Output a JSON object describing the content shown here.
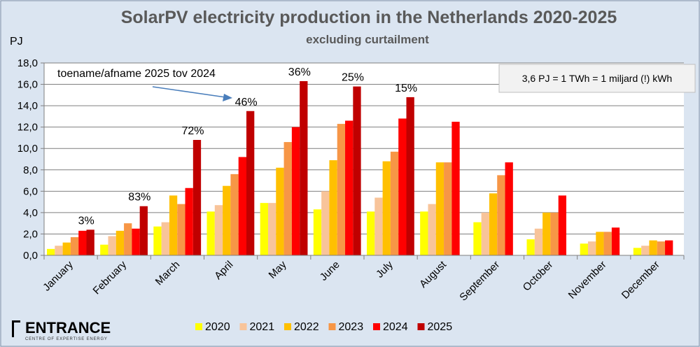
{
  "chart_data": {
    "type": "bar",
    "title": "SolarPV electricity production in the Netherlands 2020-2025",
    "subtitle": "excluding curtailment",
    "ylabel": "PJ",
    "xlabel": "",
    "ylim": [
      0,
      18
    ],
    "yticks": [
      "0,0",
      "2,0",
      "4,0",
      "6,0",
      "8,0",
      "10,0",
      "12,0",
      "14,0",
      "16,0",
      "18,0"
    ],
    "grid": true,
    "legend": "bottom",
    "categories": [
      "January",
      "February",
      "March",
      "April",
      "May",
      "June",
      "July",
      "August",
      "September",
      "October",
      "November",
      "December"
    ],
    "series": [
      {
        "name": "2020",
        "color": "#ffff00",
        "values": [
          0.6,
          1.0,
          2.7,
          4.1,
          4.9,
          4.3,
          4.1,
          4.1,
          3.1,
          1.5,
          1.1,
          0.7
        ]
      },
      {
        "name": "2021",
        "color": "#f8c49a",
        "values": [
          0.9,
          1.8,
          3.1,
          4.7,
          4.9,
          6.0,
          5.4,
          4.8,
          4.0,
          2.5,
          1.3,
          0.9
        ]
      },
      {
        "name": "2022",
        "color": "#ffc000",
        "values": [
          1.2,
          2.3,
          5.6,
          6.5,
          8.2,
          8.9,
          8.8,
          8.7,
          5.8,
          4.0,
          2.2,
          1.4
        ]
      },
      {
        "name": "2023",
        "color": "#f79646",
        "values": [
          1.7,
          3.0,
          4.8,
          7.6,
          10.6,
          12.3,
          9.7,
          8.7,
          7.5,
          4.0,
          2.2,
          1.3
        ]
      },
      {
        "name": "2024",
        "color": "#ff0000",
        "values": [
          2.3,
          2.5,
          6.3,
          9.2,
          12.0,
          12.6,
          12.8,
          12.5,
          8.7,
          5.6,
          2.6,
          1.4
        ]
      },
      {
        "name": "2025",
        "color": "#c00000",
        "values": [
          2.4,
          4.6,
          10.8,
          13.5,
          16.3,
          15.8,
          14.8,
          null,
          null,
          null,
          null,
          null
        ]
      }
    ],
    "annotations": {
      "change_labels": [
        "3%",
        "83%",
        "72%",
        "46%",
        "36%",
        "25%",
        "15%"
      ],
      "arrow_text": "toename/afname 2025 tov 2024",
      "note_box": "3,6 PJ = 1 TWh = 1 miljard (!) kWh"
    }
  },
  "logo": {
    "name": "ENTRANCE",
    "tagline": "CENTRE OF EXPERTISE ENERGY"
  }
}
